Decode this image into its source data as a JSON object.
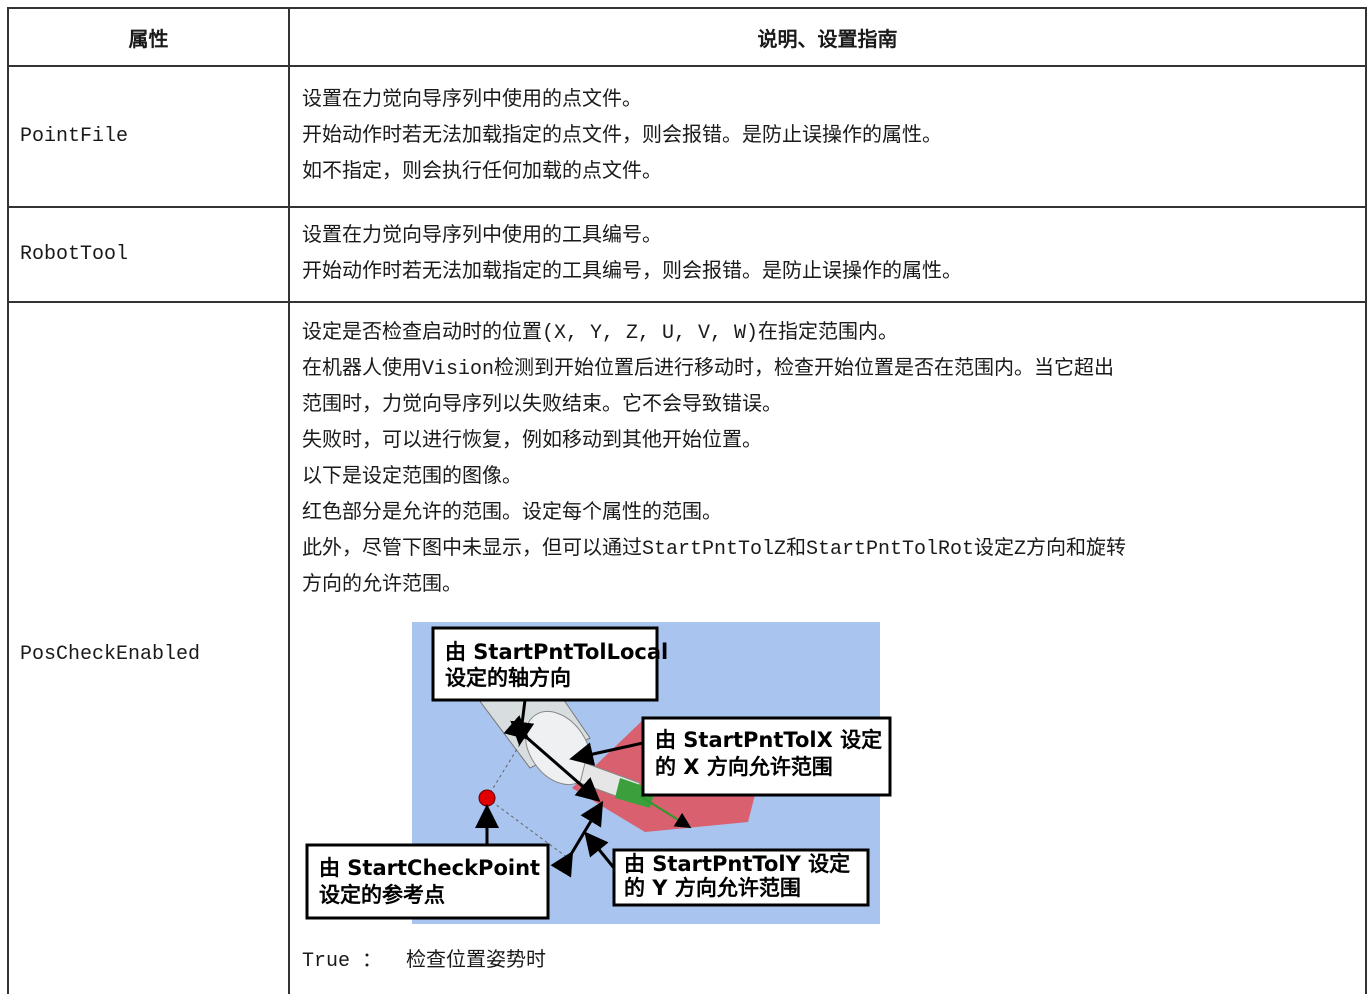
{
  "table": {
    "headers": [
      "属性",
      "说明、设置指南"
    ],
    "rows": [
      {
        "property": "PointFile",
        "description": [
          "设置在力觉向导序列中使用的点文件。",
          "开始动作时若无法加载指定的点文件，则会报错。是防止误操作的属性。",
          "如不指定，则会执行任何加载的点文件。"
        ]
      },
      {
        "property": "RobotTool",
        "description": [
          "设置在力觉向导序列中使用的工具编号。",
          "开始动作时若无法加载指定的工具编号，则会报错。是防止误操作的属性。"
        ]
      },
      {
        "property": "PosCheckEnabled",
        "description": [
          "设定是否检查启动时的位置(X, Y, Z, U, V, W)在指定范围内。",
          "在机器人使用Vision检测到开始位置后进行移动时，检查开始位置是否在范围内。当它超出",
          "范围时，力觉向导序列以失败结束。它不会导致错误。",
          "失败时，可以进行恢复，例如移动到其他开始位置。",
          "以下是设定范围的图像。",
          "红色部分是允许的范围。设定每个属性的范围。",
          "此外，尽管下图中未显示，但可以通过StartPntTolZ和StartPntTolRot设定Z方向和旋转",
          "方向的允许范围。"
        ],
        "figure_callouts": [
          [
            "由 StartPntTolLocal",
            "设定的轴方向"
          ],
          [
            "由 StartPntTolX 设定",
            "的 X 方向允许范围"
          ],
          [
            "由 StartCheckPoint",
            "设定的参考点"
          ],
          [
            "由 StartPntTolY 设定",
            "的 Y 方向允许范围"
          ]
        ],
        "description_after": [
          "True ：  检查位置姿势时"
        ]
      }
    ]
  }
}
